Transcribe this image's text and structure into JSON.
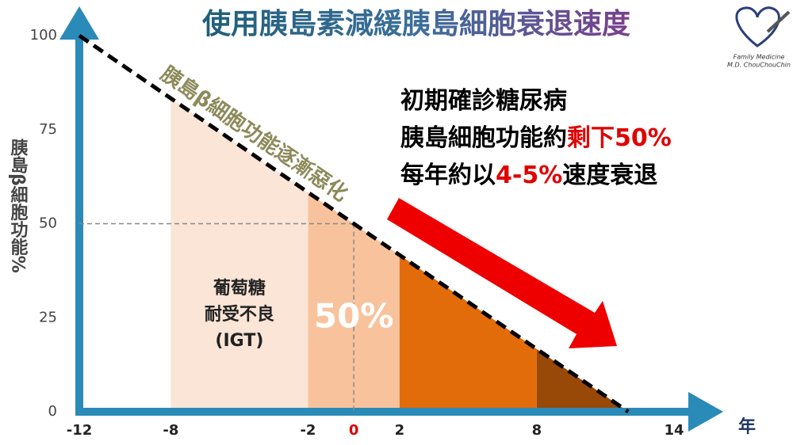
{
  "chart_data": {
    "type": "area-regions",
    "title": "使用胰島素減緩胰島細胞衰退速度",
    "y_label": "胰島β細胞功能%",
    "x_label": "年",
    "line_annotation": "胰島β細胞功能逐漸惡化",
    "x": [
      -12,
      12
    ],
    "series": [
      {
        "color": "#000000",
        "values": [
          100,
          0
        ]
      }
    ],
    "regions": [
      {
        "from": -8,
        "to": -2,
        "color": "#fbe5d6"
      },
      {
        "from": -2,
        "to": 2,
        "color": "#f8c39c"
      },
      {
        "from": 2,
        "to": 8,
        "color": "#e36c0a"
      },
      {
        "from": 8,
        "to": 12,
        "color": "#984807"
      }
    ],
    "region_text": [
      "葡萄糖",
      "耐受不良",
      "(IGT)"
    ],
    "region_value_label": "50%",
    "guide": [
      0,
      50
    ],
    "xlim": [
      -12,
      14
    ],
    "xticks": [
      -12,
      -8,
      -2,
      0,
      2,
      8,
      14
    ],
    "highlight_tick": 0,
    "ylim": [
      0,
      100
    ],
    "yticks": [
      0,
      25,
      50,
      75,
      100
    ],
    "note_lines": [
      [
        {
          "text": "初期確診糖尿病",
          "color": "#000000"
        }
      ],
      [
        {
          "text": "胰島細胞功能約",
          "color": "#000000"
        },
        {
          "text": "剩下50%",
          "color": "#e00000"
        }
      ],
      [
        {
          "text": "每年約以",
          "color": "#000000"
        },
        {
          "text": "4-5%",
          "color": "#e00000"
        },
        {
          "text": "速度衰退",
          "color": "#000000"
        }
      ]
    ],
    "logo": [
      "Family Medicine",
      "M.D. ChouChouChin"
    ]
  }
}
